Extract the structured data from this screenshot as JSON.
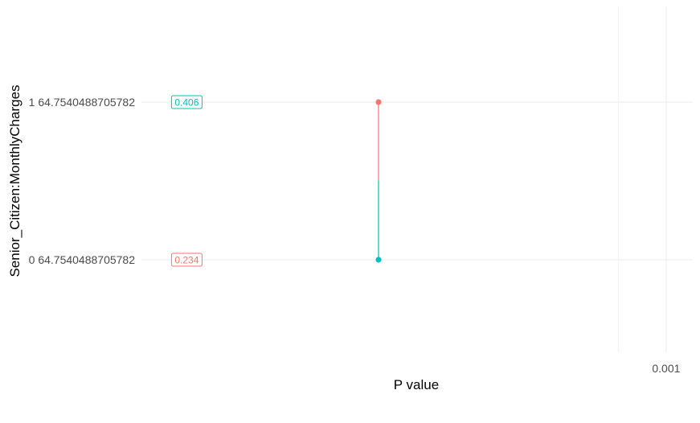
{
  "chart_data": {
    "type": "dumbbell",
    "title": "",
    "xlabel": "P value",
    "ylabel": "Senior_Citizen:MonthlyCharges",
    "x_scale": "log10",
    "x_ticks": [
      0.001
    ],
    "x_tick_labels": [
      "0.001"
    ],
    "categories": [
      "1 64.7540488705782",
      "0 64.7540488705782"
    ],
    "grid": true,
    "legend": "none",
    "segment": {
      "x": 1e-06,
      "from_category": "1 64.7540488705782",
      "to_category": "0 64.7540488705782",
      "colors": [
        "#F8766D",
        "#00BFC4"
      ]
    },
    "points": [
      {
        "category": "1 64.7540488705782",
        "x": 1e-06,
        "color": "#F8766D"
      },
      {
        "category": "0 64.7540488705782",
        "x": 1e-06,
        "color": "#00BFC4"
      }
    ],
    "labels": [
      {
        "category": "1 64.7540488705782",
        "x": 1e-08,
        "text": "0.406",
        "color": "#00BFC4"
      },
      {
        "category": "0 64.7540488705782",
        "x": 1e-08,
        "text": "0.234",
        "color": "#F8766D"
      }
    ]
  }
}
